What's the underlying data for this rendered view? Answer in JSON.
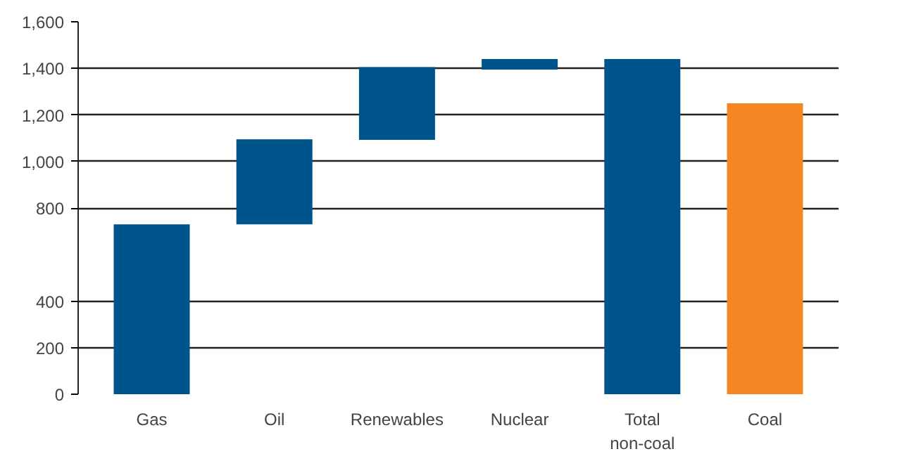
{
  "chart_data": {
    "type": "bar",
    "categories": [
      "Gas",
      "Oil",
      "Renewables",
      "Nuclear",
      "Total\nnon-coal",
      "Coal"
    ],
    "values": [
      730,
      365,
      312,
      45,
      1440,
      1250
    ],
    "base": [
      0,
      730,
      1093,
      1395,
      0,
      0
    ],
    "colors": [
      "#00548c",
      "#00548c",
      "#00548c",
      "#00548c",
      "#00548c",
      "#f48624"
    ],
    "ylim": [
      0,
      1600
    ],
    "yticks": [
      0,
      200,
      400,
      800,
      {
        "value": 1000,
        "label": "1,000"
      },
      {
        "value": 1200,
        "label": "1,200"
      },
      {
        "value": 1400,
        "label": "1,400"
      },
      {
        "value": 1600,
        "label": "1,600"
      }
    ],
    "grid": "y"
  }
}
